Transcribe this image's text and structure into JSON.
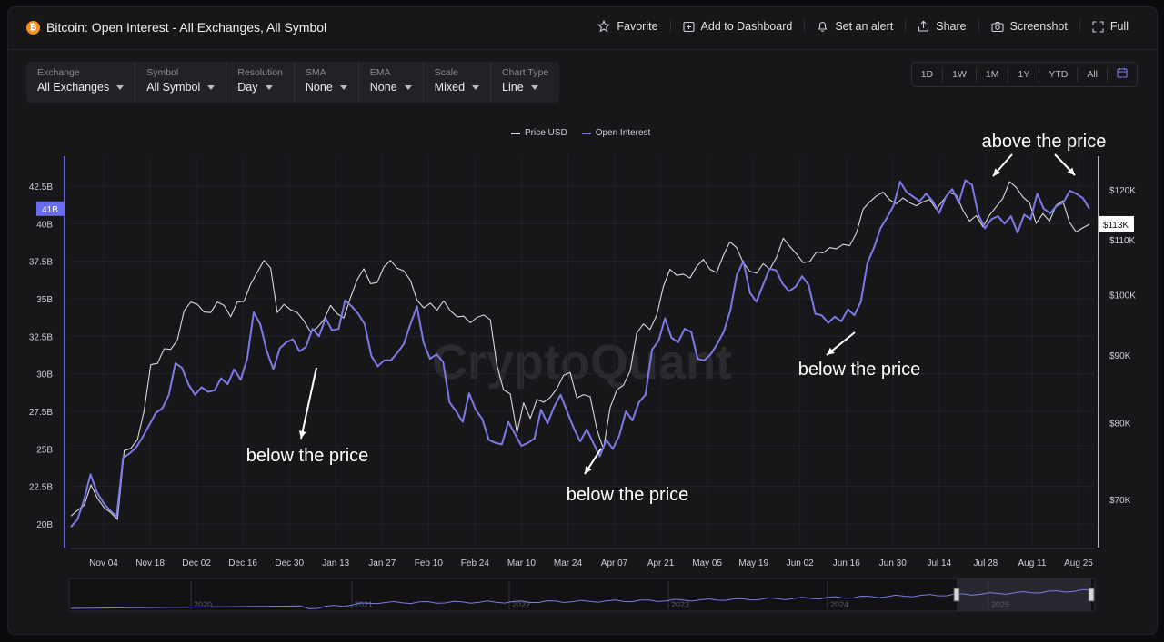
{
  "header": {
    "title": "Bitcoin: Open Interest - All Exchanges, All Symbol",
    "coin_glyph": "₿",
    "actions": [
      {
        "label": "Favorite",
        "icon": "star-icon"
      },
      {
        "label": "Add to Dashboard",
        "icon": "dashboard-add-icon"
      },
      {
        "label": "Set an alert",
        "icon": "bell-icon"
      },
      {
        "label": "Share",
        "icon": "share-icon"
      },
      {
        "label": "Screenshot",
        "icon": "camera-icon"
      },
      {
        "label": "Full",
        "icon": "fullscreen-icon"
      }
    ]
  },
  "filters": [
    {
      "label": "Exchange",
      "value": "All Exchanges"
    },
    {
      "label": "Symbol",
      "value": "All Symbol"
    },
    {
      "label": "Resolution",
      "value": "Day"
    },
    {
      "label": "SMA",
      "value": "None"
    },
    {
      "label": "EMA",
      "value": "None"
    },
    {
      "label": "Scale",
      "value": "Mixed"
    },
    {
      "label": "Chart Type",
      "value": "Line"
    }
  ],
  "ranges": [
    "1D",
    "1W",
    "1M",
    "1Y",
    "YTD",
    "All"
  ],
  "watermark": "CryptoQuant",
  "colors": {
    "price": "#d9d9de",
    "open_interest": "#7b7be8",
    "accent": "#6b6bf0",
    "annotation": "#ffffff"
  },
  "chart_data": {
    "type": "line",
    "legend": [
      "Price USD",
      "Open Interest"
    ],
    "legend_position": "top-center",
    "x_ticks": [
      "Nov 04",
      "Nov 18",
      "Dec 02",
      "Dec 16",
      "Dec 30",
      "Jan 13",
      "Jan 27",
      "Feb 10",
      "Feb 24",
      "Mar 10",
      "Mar 24",
      "Apr 07",
      "Apr 21",
      "May 05",
      "May 19",
      "Jun 02",
      "Jun 16",
      "Jun 30",
      "Jul 14",
      "Jul 28",
      "Aug 11",
      "Aug 25"
    ],
    "left_axis": {
      "ticks": [
        "20B",
        "22.5B",
        "25B",
        "27.5B",
        "30B",
        "32.5B",
        "35B",
        "37.5B",
        "40B",
        "42.5B"
      ],
      "values": [
        20,
        22.5,
        25,
        27.5,
        30,
        32.5,
        35,
        37.5,
        40,
        42.5
      ],
      "range": [
        19.5,
        44.2
      ],
      "current_label": "41B",
      "current_value": 41
    },
    "right_axis": {
      "ticks": [
        "$70K",
        "$80K",
        "$90K",
        "$100K",
        "$110K",
        "$120K"
      ],
      "values": [
        70,
        80,
        90,
        100,
        110,
        120
      ],
      "range": [
        64,
        125
      ],
      "scale": "log",
      "current_label": "$113K",
      "current_value": 113
    },
    "grid": true,
    "series": [
      {
        "name": "Open Interest",
        "unit": "B",
        "values": [
          19.8,
          20.3,
          21.6,
          23.3,
          22.1,
          21.4,
          20.9,
          20.5,
          24.4,
          24.7,
          25.1,
          25.8,
          26.6,
          27.4,
          27.7,
          28.6,
          30.7,
          30.4,
          29.3,
          28.6,
          29.1,
          28.8,
          28.9,
          29.7,
          29.3,
          30.3,
          29.6,
          31.0,
          34.1,
          33.3,
          31.5,
          30.3,
          31.7,
          32.1,
          32.3,
          31.5,
          31.8,
          33.0,
          32.5,
          33.7,
          32.9,
          33.0,
          34.9,
          34.5,
          34.0,
          33.3,
          31.2,
          30.5,
          30.9,
          30.9,
          31.4,
          32.0,
          33.3,
          34.5,
          32.1,
          31.0,
          31.3,
          30.8,
          28.1,
          27.5,
          26.8,
          28.7,
          27.6,
          27.0,
          25.6,
          25.4,
          25.3,
          26.8,
          26.0,
          25.2,
          25.4,
          25.7,
          27.6,
          26.7,
          27.8,
          28.6,
          27.5,
          26.4,
          25.5,
          26.3,
          25.4,
          24.5,
          25.6,
          25.0,
          25.9,
          27.5,
          26.9,
          28.1,
          28.6,
          31.6,
          32.2,
          33.7,
          32.4,
          32.1,
          33.0,
          32.8,
          31.0,
          30.9,
          31.3,
          32.0,
          32.8,
          34.2,
          36.6,
          37.5,
          35.4,
          34.8,
          35.9,
          37.0,
          36.9,
          36.0,
          35.5,
          35.8,
          36.5,
          35.9,
          34.0,
          33.9,
          33.4,
          33.8,
          33.5,
          34.3,
          33.9,
          34.8,
          37.4,
          38.4,
          39.7,
          40.4,
          41.2,
          42.8,
          42.1,
          41.8,
          41.5,
          42.0,
          41.5,
          40.7,
          41.8,
          42.3,
          41.4,
          42.9,
          42.6,
          40.6,
          39.7,
          40.3,
          40.5,
          40.0,
          40.5,
          39.4,
          40.6,
          40.3,
          42.0,
          41.0,
          40.7,
          41.2,
          41.4,
          42.2,
          42.0,
          41.7,
          41.0
        ],
        "x_end": 1.0
      },
      {
        "name": "Price USD",
        "unit": "$K",
        "values": [
          68.0,
          68.7,
          69.3,
          71.8,
          70.1,
          69.0,
          68.4,
          67.6,
          76.2,
          76.5,
          77.7,
          81.7,
          88.5,
          88.7,
          91.0,
          90.9,
          92.4,
          97.2,
          98.7,
          98.3,
          97.0,
          96.9,
          98.7,
          98.1,
          96.2,
          98.7,
          98.8,
          101.8,
          104.0,
          106.1,
          104.7,
          96.9,
          98.3,
          97.4,
          96.9,
          95.5,
          93.7,
          94.4,
          95.7,
          98.1,
          96.7,
          96.0,
          99.5,
          102.6,
          104.6,
          101.9,
          102.1,
          104.9,
          106.1,
          104.7,
          104.2,
          102.5,
          99.0,
          97.7,
          98.5,
          97.3,
          98.9,
          97.2,
          96.2,
          96.3,
          95.2,
          96.1,
          96.5,
          95.7,
          88.3,
          84.7,
          84.1,
          78.6,
          82.8,
          80.6,
          83.3,
          82.9,
          83.6,
          84.9,
          86.9,
          87.3,
          83.5,
          84.0,
          83.7,
          79.1,
          76.4,
          82.1,
          84.7,
          85.4,
          87.5,
          93.5,
          95.0,
          94.1,
          96.5,
          101.4,
          104.5,
          103.4,
          103.6,
          102.9,
          105.0,
          106.3,
          104.5,
          103.9,
          107.0,
          109.6,
          108.5,
          105.7,
          104.1,
          103.8,
          105.5,
          104.5,
          106.7,
          110.3,
          108.7,
          107.3,
          105.7,
          105.9,
          107.7,
          107.5,
          108.5,
          108.3,
          109.1,
          108.9,
          111.3,
          116.0,
          117.5,
          118.7,
          119.5,
          117.9,
          117.1,
          118.3,
          117.3,
          116.7,
          117.5,
          118.0,
          116.0,
          117.8,
          119.4,
          118.9,
          115.8,
          113.6,
          114.7,
          112.5,
          114.8,
          116.5,
          118.2,
          121.7,
          120.5,
          118.5,
          117.3,
          113.2,
          115.1,
          113.6,
          116.8,
          117.7,
          113.4,
          111.5,
          112.3,
          113.0
        ],
        "x_end": 1.0
      }
    ],
    "annotations": [
      {
        "text": "below the price"
      },
      {
        "text": "below the price"
      },
      {
        "text": "below the price"
      },
      {
        "text": "above the price"
      }
    ],
    "navigator": {
      "labels": [
        "2020",
        "2021",
        "2022",
        "2023",
        "2024",
        "2025"
      ]
    }
  }
}
